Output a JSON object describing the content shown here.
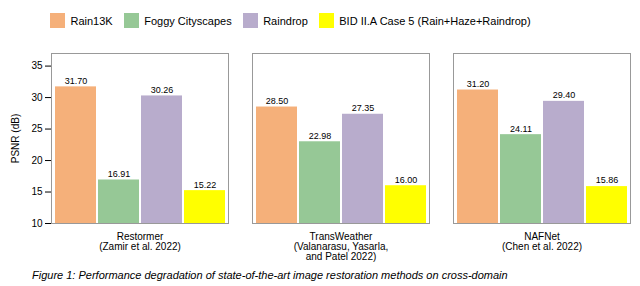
{
  "chart_data": {
    "type": "bar",
    "caption": "Figure 1: Performance degradation of state-of-the-art image restoration methods on cross-domain",
    "ylabel": "PSNR (dB)",
    "categories": [
      "Restormer\n(Zamir et al. 2022)",
      "TransWeather\n(Valanarasu, Yasarla,\nand Patel 2022)",
      "NAFNet\n(Chen et al. 2022)"
    ],
    "series": [
      {
        "name": "Rain13K",
        "color": "#F5B07A",
        "values": [
          31.7,
          28.5,
          31.2
        ],
        "value_labels": [
          "31.70",
          "28.50",
          "31.20"
        ]
      },
      {
        "name": "Foggy Cityscapes",
        "color": "#96C896",
        "values": [
          16.91,
          22.98,
          24.11
        ],
        "value_labels": [
          "16.91",
          "22.98",
          "24.11"
        ]
      },
      {
        "name": "Raindrop",
        "color": "#B8ACCC",
        "values": [
          30.26,
          27.35,
          29.4
        ],
        "value_labels": [
          "30.26",
          "27.35",
          "29.40"
        ]
      },
      {
        "name": "BID II.A Case 5 (Rain+Haze+Raindrop)",
        "color": "#FFFF00",
        "values": [
          15.22,
          16.0,
          15.86
        ],
        "value_labels": [
          "15.22",
          "16.00",
          "15.86"
        ]
      }
    ],
    "ylim": [
      10,
      37
    ],
    "yticks": [
      10,
      15,
      20,
      25,
      30,
      35
    ],
    "grid": false,
    "legend": "top",
    "data_labels": true
  }
}
